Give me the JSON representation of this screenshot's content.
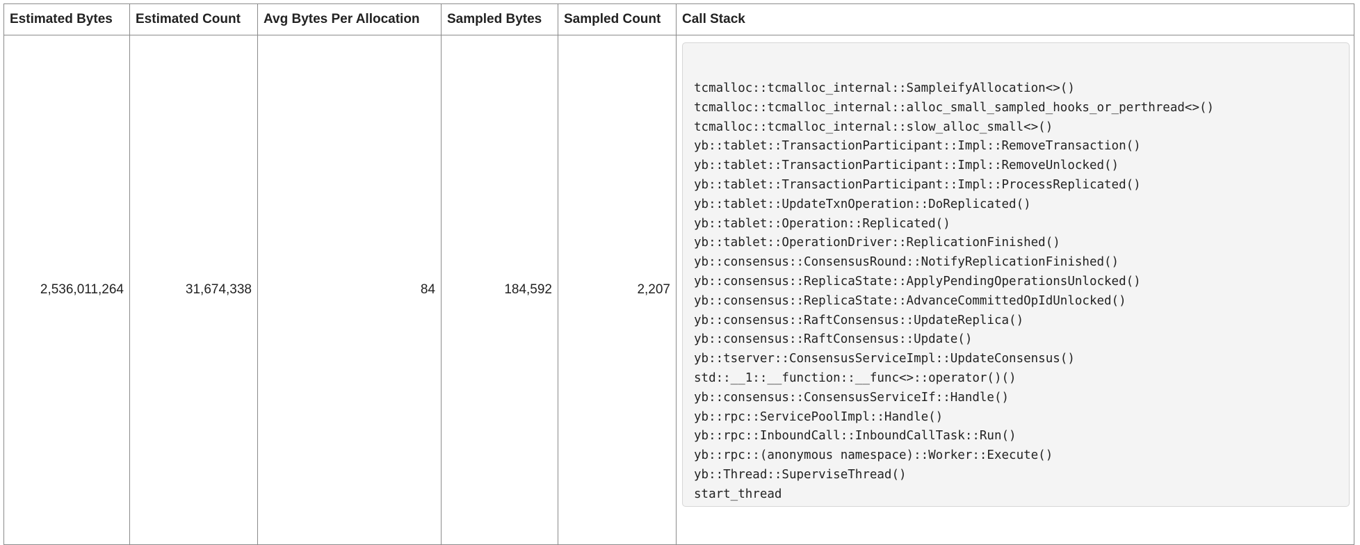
{
  "table": {
    "headers": [
      "Estimated Bytes",
      "Estimated Count",
      "Avg Bytes Per Allocation",
      "Sampled Bytes",
      "Sampled Count",
      "Call Stack"
    ],
    "rows": [
      {
        "estimated_bytes": "2,536,011,264",
        "estimated_count": "31,674,338",
        "avg_bytes_per_allocation": "84",
        "sampled_bytes": "184,592",
        "sampled_count": "2,207",
        "call_stack": [
          "tcmalloc::tcmalloc_internal::SampleifyAllocation<>()",
          "tcmalloc::tcmalloc_internal::alloc_small_sampled_hooks_or_perthread<>()",
          "tcmalloc::tcmalloc_internal::slow_alloc_small<>()",
          "yb::tablet::TransactionParticipant::Impl::RemoveTransaction()",
          "yb::tablet::TransactionParticipant::Impl::RemoveUnlocked()",
          "yb::tablet::TransactionParticipant::Impl::ProcessReplicated()",
          "yb::tablet::UpdateTxnOperation::DoReplicated()",
          "yb::tablet::Operation::Replicated()",
          "yb::tablet::OperationDriver::ReplicationFinished()",
          "yb::consensus::ConsensusRound::NotifyReplicationFinished()",
          "yb::consensus::ReplicaState::ApplyPendingOperationsUnlocked()",
          "yb::consensus::ReplicaState::AdvanceCommittedOpIdUnlocked()",
          "yb::consensus::RaftConsensus::UpdateReplica()",
          "yb::consensus::RaftConsensus::Update()",
          "yb::tserver::ConsensusServiceImpl::UpdateConsensus()",
          "std::__1::__function::__func<>::operator()()",
          "yb::consensus::ConsensusServiceIf::Handle()",
          "yb::rpc::ServicePoolImpl::Handle()",
          "yb::rpc::InboundCall::InboundCallTask::Run()",
          "yb::rpc::(anonymous namespace)::Worker::Execute()",
          "yb::Thread::SuperviseThread()",
          "start_thread"
        ]
      }
    ]
  }
}
